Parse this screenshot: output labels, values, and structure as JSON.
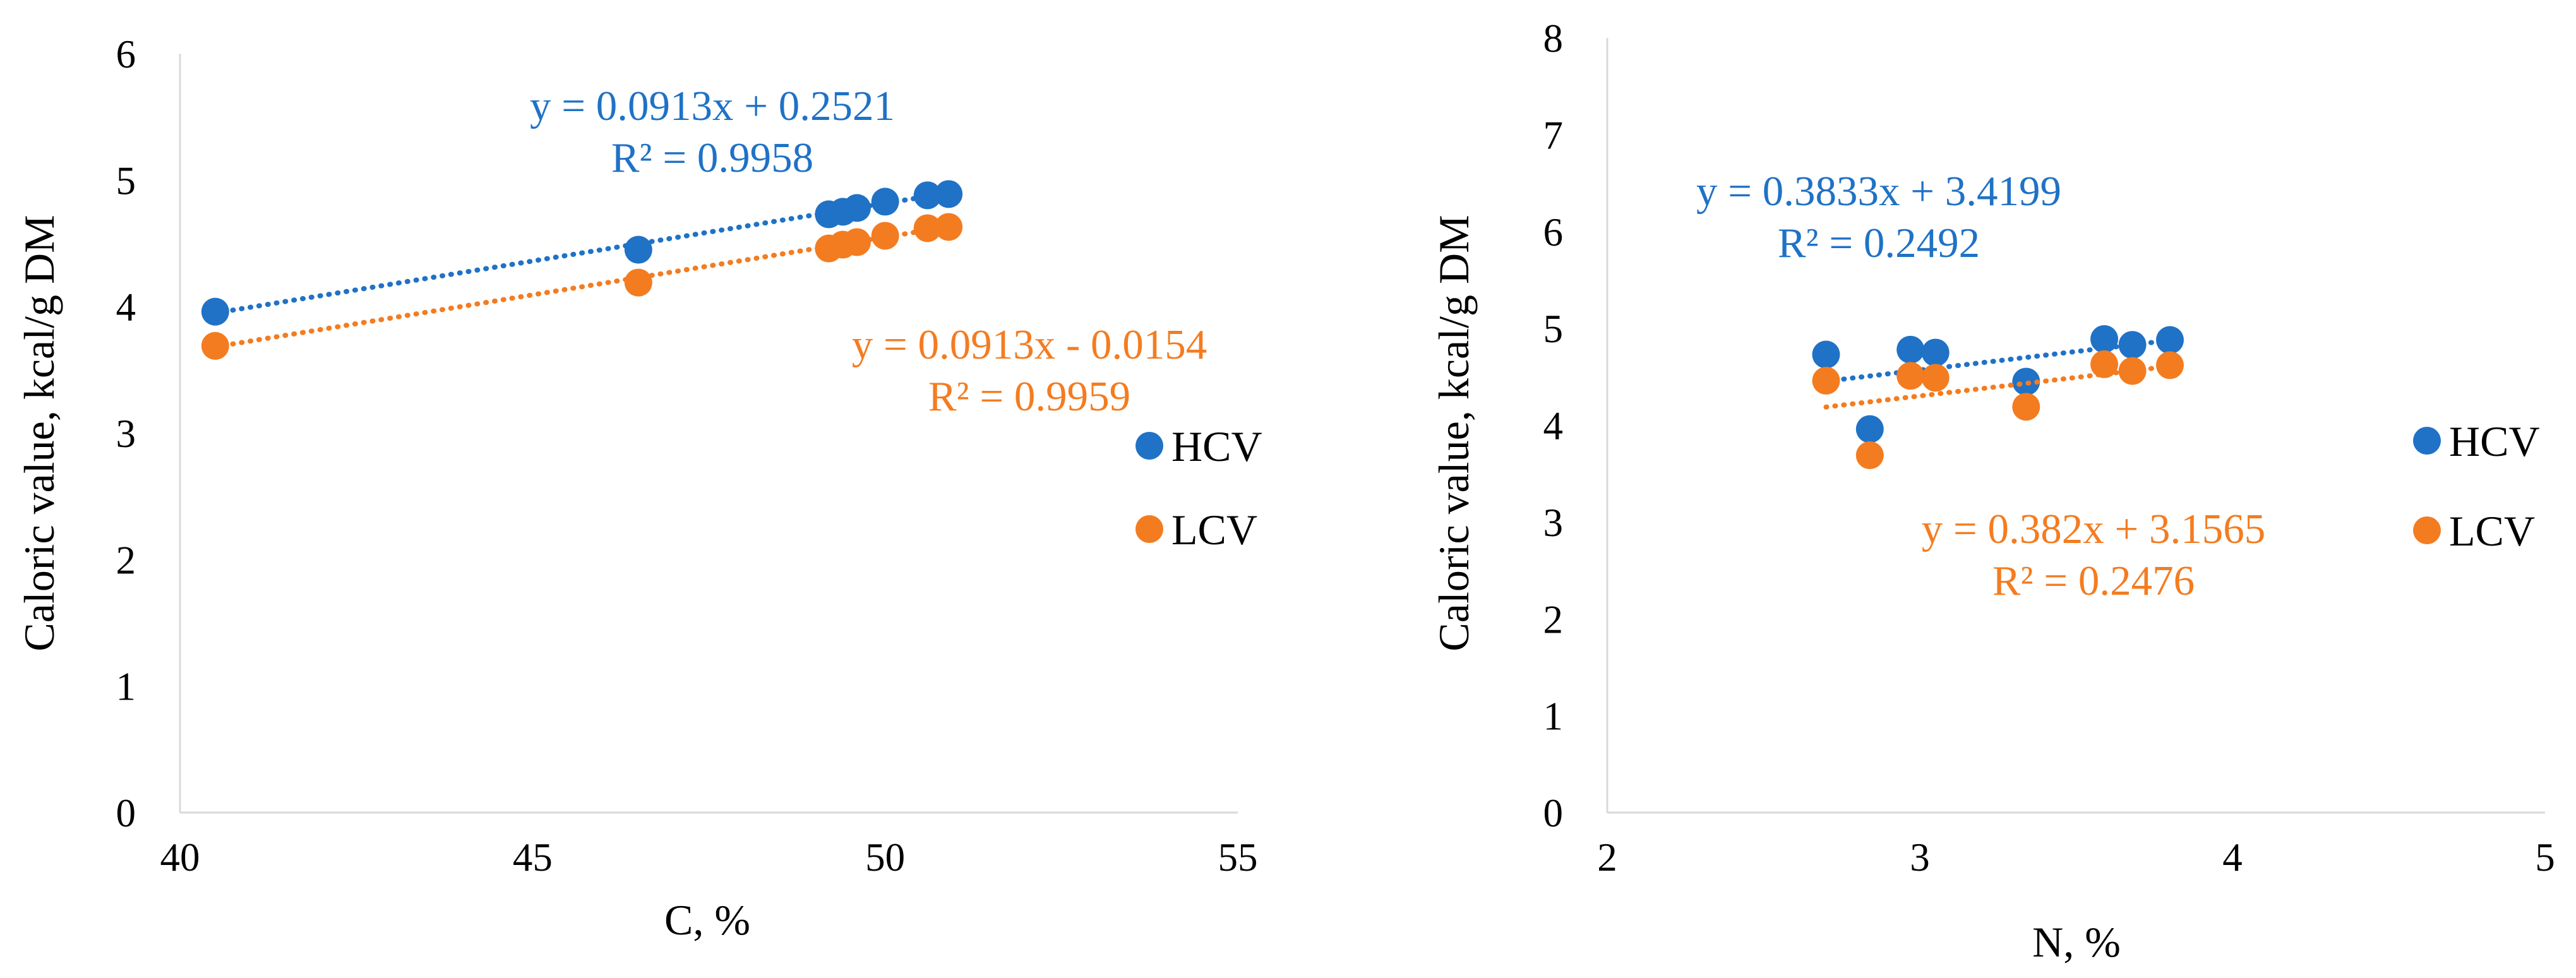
{
  "chart_data": [
    {
      "type": "scatter",
      "xlabel": "C, %",
      "ylabel": "Caloric value, kcal/g DM",
      "xlim": [
        40,
        55
      ],
      "ylim": [
        0,
        6
      ],
      "xticks": [
        40,
        45,
        50,
        55
      ],
      "yticks": [
        0,
        1,
        2,
        3,
        4,
        5,
        6
      ],
      "xtick_labels": [
        "40",
        "45",
        "50",
        "55"
      ],
      "ytick_labels": [
        "0",
        "1",
        "2",
        "3",
        "4",
        "5",
        "6"
      ],
      "grid": false,
      "legend_position": "right",
      "series": [
        {
          "name": "HCV",
          "color": "#1F72C6",
          "x": [
            40.5,
            46.5,
            49.2,
            49.4,
            49.6,
            50.0,
            50.6,
            50.9
          ],
          "y": [
            3.96,
            4.45,
            4.73,
            4.75,
            4.78,
            4.83,
            4.88,
            4.89
          ],
          "trendline": {
            "slope": 0.0913,
            "intercept": 0.2521
          },
          "equation": "y = 0.0913x + 0.2521",
          "r2": "R² = 0.9958"
        },
        {
          "name": "LCV",
          "color": "#F47C20",
          "x": [
            40.5,
            46.5,
            49.2,
            49.4,
            49.6,
            50.0,
            50.6,
            50.9
          ],
          "y": [
            3.69,
            4.19,
            4.46,
            4.49,
            4.51,
            4.56,
            4.62,
            4.63
          ],
          "trendline": {
            "slope": 0.0913,
            "intercept": -0.0154
          },
          "equation": "y = 0.0913x - 0.0154",
          "r2": "R² = 0.9959"
        }
      ]
    },
    {
      "type": "scatter",
      "xlabel": "N, %",
      "ylabel": "Caloric value, kcal/g DM",
      "xlim": [
        2,
        5
      ],
      "ylim": [
        0,
        8
      ],
      "xticks": [
        2,
        3,
        4,
        5
      ],
      "yticks": [
        0,
        1,
        2,
        3,
        4,
        5,
        6,
        7,
        8
      ],
      "xtick_labels": [
        "2",
        "3",
        "4",
        "5"
      ],
      "ytick_labels": [
        "0",
        "1",
        "2",
        "3",
        "4",
        "5",
        "6",
        "7",
        "8"
      ],
      "grid": false,
      "legend_position": "right",
      "series": [
        {
          "name": "HCV",
          "color": "#1F72C6",
          "x": [
            2.7,
            2.84,
            2.97,
            3.05,
            3.34,
            3.59,
            3.68,
            3.8
          ],
          "y": [
            4.73,
            3.96,
            4.78,
            4.75,
            4.45,
            4.89,
            4.83,
            4.88
          ],
          "trendline": {
            "slope": 0.3833,
            "intercept": 3.4199
          },
          "equation": "y = 0.3833x + 3.4199",
          "r2": "R² = 0.2492"
        },
        {
          "name": "LCV",
          "color": "#F47C20",
          "x": [
            2.7,
            2.84,
            2.97,
            3.05,
            3.34,
            3.59,
            3.68,
            3.8
          ],
          "y": [
            4.46,
            3.69,
            4.51,
            4.49,
            4.19,
            4.63,
            4.56,
            4.62
          ],
          "trendline": {
            "slope": 0.382,
            "intercept": 3.1565
          },
          "equation": "y = 0.382x + 3.1565",
          "r2": "R² = 0.2476"
        }
      ]
    }
  ]
}
